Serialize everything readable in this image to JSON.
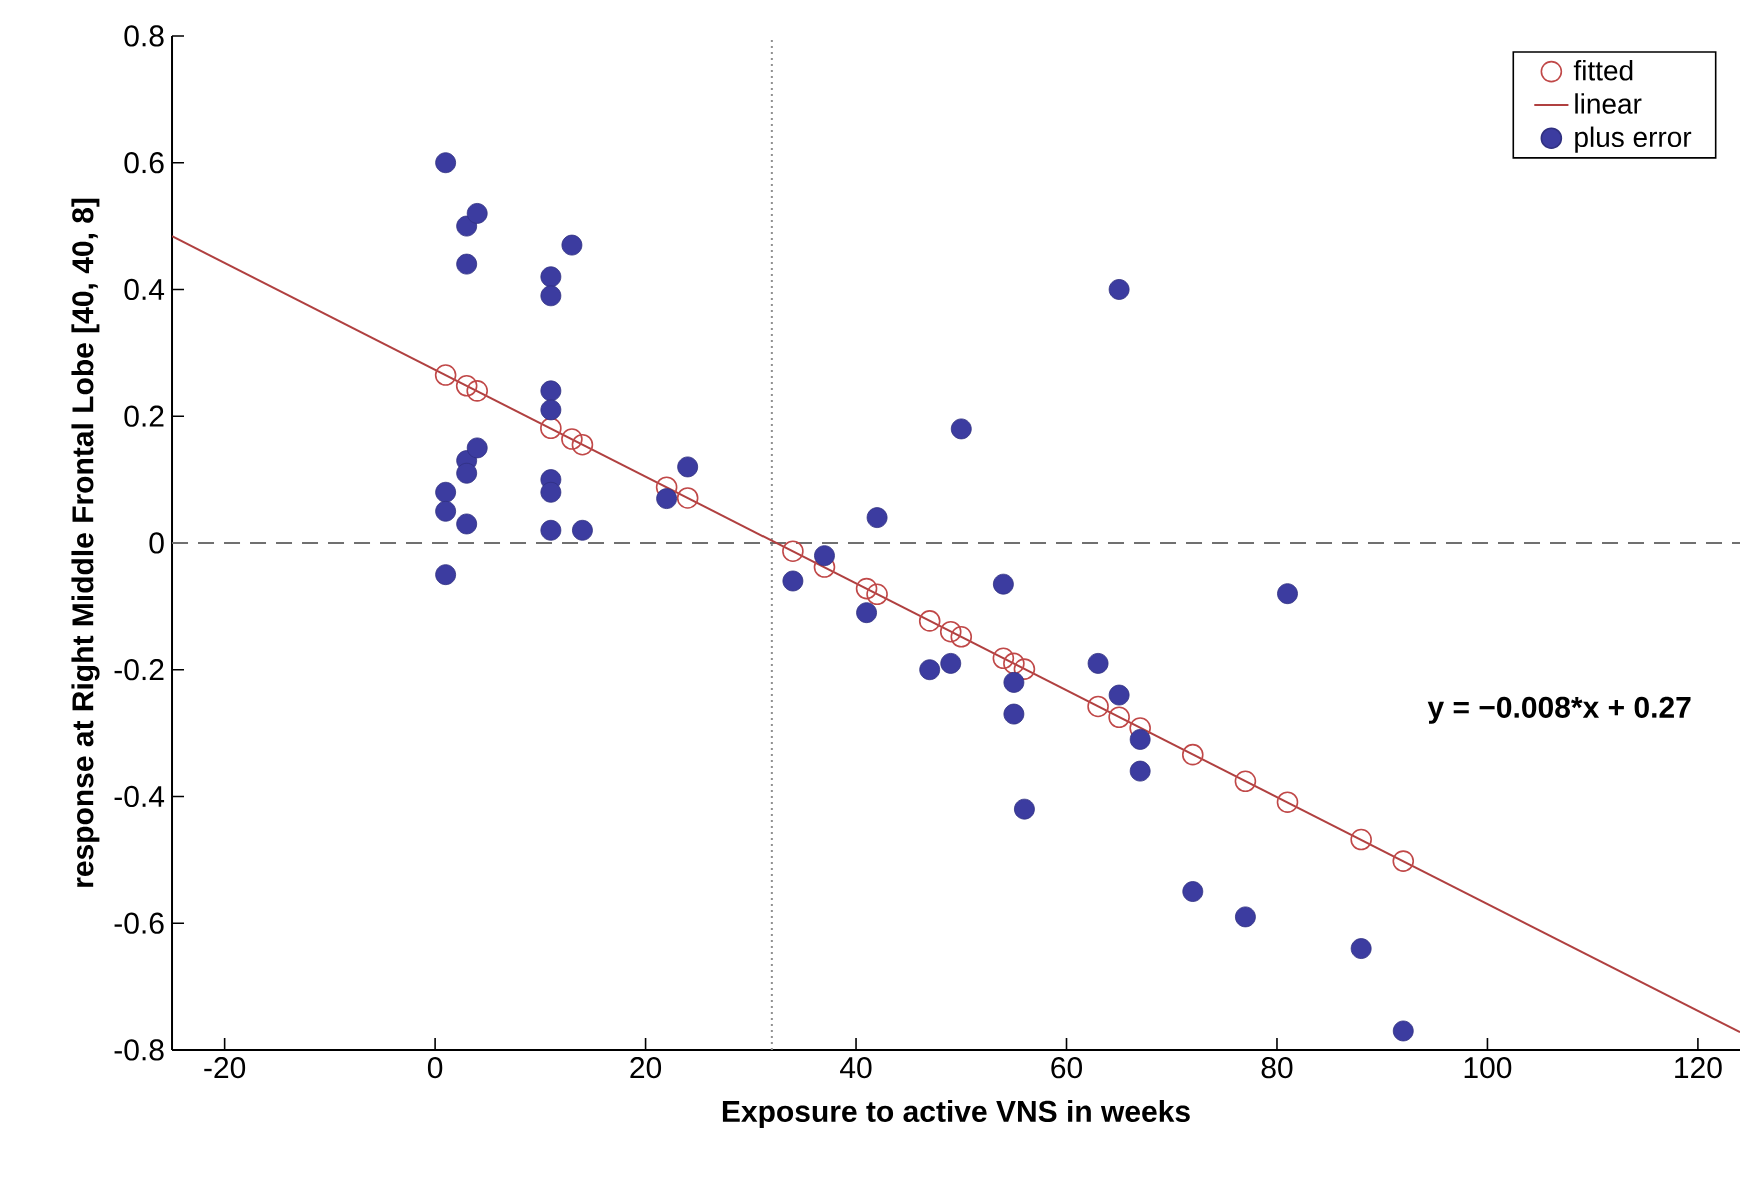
{
  "chart_data": {
    "type": "scatter",
    "xlabel": "Exposure to active VNS in weeks",
    "ylabel": "response  at Right Middle Frontal Lobe [40, 40, 8]",
    "xlim": [
      -25,
      124
    ],
    "ylim": [
      -0.8,
      0.8
    ],
    "xticks": [
      -20,
      0,
      20,
      40,
      60,
      80,
      100,
      120
    ],
    "yticks": [
      -0.8,
      -0.6,
      -0.4,
      -0.2,
      0,
      0.2,
      0.4,
      0.6,
      0.8
    ],
    "grid": false,
    "legend": "top right",
    "annotations": [
      "y = −0.008*x + 0.27"
    ],
    "ref_lines": [
      {
        "axis": "y",
        "value": 0,
        "color": "#707070",
        "line_style": "dashed"
      },
      {
        "axis": "x",
        "value": 32,
        "color": "#909090",
        "line_style": "dotted"
      }
    ],
    "series": [
      {
        "name": "fitted",
        "marker": "circle",
        "color": "#c04848",
        "x": [
          1,
          3,
          4,
          11,
          13,
          14,
          22,
          24,
          34,
          37,
          41,
          42,
          47,
          49,
          50,
          54,
          55,
          56,
          63,
          65,
          67,
          72,
          77,
          81,
          88,
          92
        ],
        "values": [
          0.265,
          0.248,
          0.24,
          0.181,
          0.164,
          0.155,
          0.088,
          0.071,
          -0.013,
          -0.038,
          -0.072,
          -0.081,
          -0.123,
          -0.14,
          -0.148,
          -0.182,
          -0.19,
          -0.199,
          -0.258,
          -0.275,
          -0.292,
          -0.334,
          -0.376,
          -0.409,
          -0.468,
          -0.502
        ]
      },
      {
        "name": "linear",
        "type": "line",
        "marker": "none",
        "line_style": "solid",
        "color": "#b04040",
        "x": [
          -25,
          124
        ],
        "values": [
          0.484,
          -0.772
        ]
      },
      {
        "name": "plus error",
        "marker": "circle",
        "color": "#3c3ca0",
        "x": [
          1,
          1,
          1,
          1,
          3,
          3,
          3,
          3,
          3,
          4,
          4,
          11,
          11,
          11,
          11,
          11,
          11,
          11,
          13,
          14,
          22,
          24,
          34,
          37,
          41,
          42,
          47,
          49,
          50,
          54,
          55,
          55,
          56,
          63,
          65,
          65,
          67,
          67,
          72,
          77,
          81,
          88,
          92
        ],
        "values": [
          0.6,
          0.08,
          0.05,
          -0.05,
          0.5,
          0.44,
          0.13,
          0.11,
          0.03,
          0.52,
          0.15,
          0.42,
          0.39,
          0.24,
          0.21,
          0.1,
          0.08,
          0.02,
          0.47,
          0.02,
          0.07,
          0.12,
          -0.06,
          -0.02,
          -0.11,
          0.04,
          -0.2,
          -0.19,
          0.18,
          -0.065,
          -0.22,
          -0.27,
          -0.42,
          -0.19,
          0.4,
          -0.24,
          -0.31,
          -0.36,
          -0.55,
          -0.59,
          -0.08,
          -0.64,
          -0.77
        ]
      }
    ]
  }
}
